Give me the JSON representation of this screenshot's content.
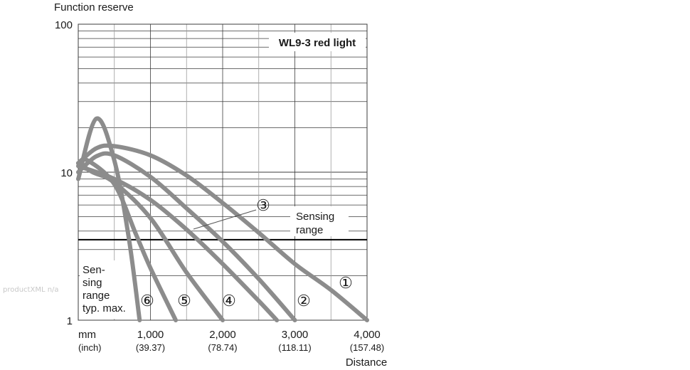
{
  "watermark": "productXML n/a",
  "chart_data": {
    "type": "line",
    "title": "WL9-3 red light",
    "ylabel": "Function reserve",
    "xlabel": "Distance",
    "x_unit": "mm",
    "x_unit_alt": "(inch)",
    "yscale": "log",
    "ylim": [
      1,
      100
    ],
    "xlim": [
      0,
      4000
    ],
    "y_ticks": [
      {
        "value": 1,
        "label": "1"
      },
      {
        "value": 10,
        "label": "10"
      },
      {
        "value": 100,
        "label": "100"
      }
    ],
    "x_ticks": [
      {
        "value": 1000,
        "label": "1,000",
        "sub": "(39.37)"
      },
      {
        "value": 2000,
        "label": "2,000",
        "sub": "(78.74)"
      },
      {
        "value": 3000,
        "label": "3,000",
        "sub": "(118.11)"
      },
      {
        "value": 4000,
        "label": "4,000",
        "sub": "(157.48)"
      }
    ],
    "grid": true,
    "sensing_range_threshold": 3.5,
    "annotations": {
      "threshold_label": [
        "Sensing",
        "range"
      ],
      "range_note": [
        "Sen-",
        "sing",
        "range",
        "typ. max."
      ]
    },
    "series": [
      {
        "name": "①",
        "x": [
          0,
          250,
          500,
          1000,
          1500,
          2000,
          2500,
          3000,
          3500,
          4000
        ],
        "y": [
          11.5,
          14.5,
          15,
          13,
          9.5,
          6.2,
          3.9,
          2.4,
          1.6,
          1.0
        ]
      },
      {
        "name": "②",
        "x": [
          0,
          250,
          500,
          1000,
          1500,
          2000,
          2500,
          3000
        ],
        "y": [
          10,
          12.8,
          13,
          9.3,
          5.7,
          3.4,
          1.9,
          1.0
        ]
      },
      {
        "name": "③",
        "x": [
          0,
          500,
          1000,
          1500,
          2000,
          2500,
          2750
        ],
        "y": [
          11,
          9,
          6.5,
          4.1,
          2.4,
          1.35,
          1.0
        ]
      },
      {
        "name": "④",
        "x": [
          0,
          200,
          500,
          1000,
          1500,
          2000
        ],
        "y": [
          11.5,
          10,
          8.5,
          4.9,
          2.1,
          1.0
        ]
      },
      {
        "name": "⑤",
        "x": [
          0,
          130,
          500,
          800,
          1000,
          1350
        ],
        "y": [
          11.5,
          12,
          8.3,
          3.8,
          2.25,
          1.0
        ]
      },
      {
        "name": "⑥",
        "x": [
          0,
          250,
          500,
          700,
          850
        ],
        "y": [
          9,
          23,
          12,
          3.6,
          1.0
        ]
      }
    ],
    "series_label_positions": [
      "curve-end",
      "curve-end",
      "leader",
      "curve-end",
      "curve-end",
      "curve-end"
    ],
    "colors": {
      "curve": "#8c8c8c",
      "grid": "#3c3c3c",
      "threshold": "#000000",
      "text": "#1a1a1a"
    }
  }
}
